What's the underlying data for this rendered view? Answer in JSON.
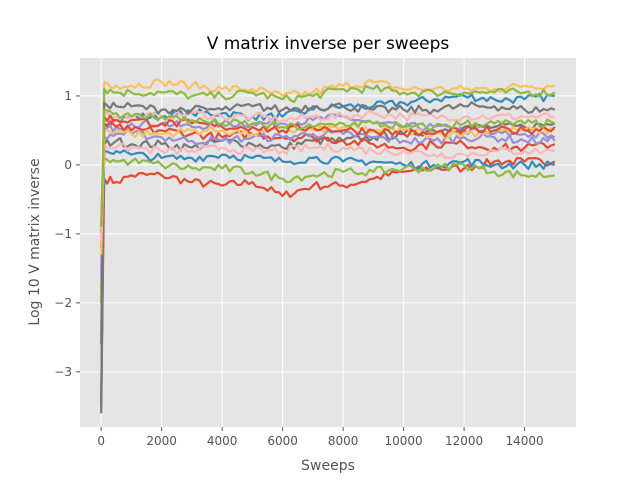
{
  "chart_data": {
    "type": "line",
    "title": "V matrix inverse per sweeps",
    "xlabel": "Sweeps",
    "ylabel": "Log 10 V matrix inverse",
    "xlim": [
      -700,
      15700
    ],
    "ylim": [
      -3.8,
      1.55
    ],
    "xticks": [
      0,
      2000,
      4000,
      6000,
      8000,
      10000,
      12000,
      14000
    ],
    "yticks": [
      -3,
      -2,
      -1,
      0,
      1
    ],
    "grid": true,
    "legend": "none",
    "background": "#e5e5e5",
    "x": [
      0,
      100,
      500,
      1000,
      2000,
      3000,
      4000,
      5000,
      6000,
      7000,
      8000,
      9000,
      10000,
      11000,
      12000,
      13000,
      14000,
      15000
    ],
    "series": [
      {
        "color": "#e24a33",
        "values": [
          -3.4,
          -0.2,
          -0.25,
          -0.15,
          -0.15,
          -0.25,
          -0.3,
          -0.25,
          -0.45,
          -0.3,
          -0.3,
          -0.2,
          -0.1,
          -0.05,
          -0.05,
          0.05,
          0.05,
          0.05
        ]
      },
      {
        "color": "#348abd",
        "values": [
          -3.5,
          0.6,
          0.65,
          0.7,
          0.7,
          0.75,
          0.75,
          0.7,
          0.7,
          0.8,
          0.85,
          0.85,
          0.9,
          0.95,
          1.0,
          0.95,
          0.95,
          1.0
        ]
      },
      {
        "color": "#988ed5",
        "values": [
          -1.8,
          0.5,
          0.55,
          0.6,
          0.6,
          0.55,
          0.6,
          0.6,
          0.6,
          0.65,
          0.7,
          0.6,
          0.55,
          0.55,
          0.5,
          0.45,
          0.45,
          0.4
        ]
      },
      {
        "color": "#777777",
        "values": [
          -3.6,
          0.3,
          0.35,
          0.3,
          0.3,
          0.25,
          0.35,
          0.3,
          0.25,
          0.35,
          0.35,
          0.4,
          0.45,
          0.5,
          0.55,
          0.55,
          0.55,
          0.6
        ]
      },
      {
        "color": "#fbc15e",
        "values": [
          -2.5,
          1.2,
          1.15,
          1.15,
          1.2,
          1.15,
          1.1,
          1.1,
          1.0,
          1.05,
          1.15,
          1.2,
          1.1,
          1.1,
          1.1,
          1.1,
          1.15,
          1.15
        ]
      },
      {
        "color": "#8eba42",
        "values": [
          -2.0,
          1.1,
          1.05,
          1.05,
          1.05,
          1.0,
          1.0,
          1.05,
          0.95,
          1.0,
          1.1,
          1.1,
          1.05,
          1.05,
          1.05,
          1.05,
          1.05,
          1.05
        ]
      },
      {
        "color": "#ffb5b8",
        "values": [
          -1.5,
          0.75,
          0.7,
          0.7,
          0.7,
          0.75,
          0.7,
          0.7,
          0.65,
          0.7,
          0.7,
          0.75,
          0.7,
          0.7,
          0.7,
          0.7,
          0.7,
          0.7
        ]
      },
      {
        "color": "#e24a33",
        "values": [
          -1.2,
          0.6,
          0.55,
          0.5,
          0.5,
          0.45,
          0.4,
          0.45,
          0.4,
          0.4,
          0.35,
          0.3,
          0.25,
          0.3,
          0.3,
          0.25,
          0.25,
          0.3
        ]
      },
      {
        "color": "#348abd",
        "values": [
          -1.0,
          0.2,
          0.2,
          0.15,
          0.1,
          0.1,
          0.15,
          0.1,
          0.05,
          0.1,
          0.05,
          0.05,
          0.0,
          0.0,
          0.05,
          0.0,
          0.0,
          0.0
        ]
      },
      {
        "color": "#988ed5",
        "values": [
          -1.6,
          0.4,
          0.45,
          0.45,
          0.4,
          0.35,
          0.35,
          0.4,
          0.4,
          0.45,
          0.45,
          0.4,
          0.35,
          0.35,
          0.4,
          0.4,
          0.35,
          0.35
        ]
      },
      {
        "color": "#777777",
        "values": [
          -2.6,
          0.9,
          0.85,
          0.85,
          0.8,
          0.8,
          0.8,
          0.85,
          0.8,
          0.85,
          0.85,
          0.8,
          0.8,
          0.8,
          0.85,
          0.85,
          0.8,
          0.8
        ]
      },
      {
        "color": "#fbc15e",
        "values": [
          -1.3,
          0.5,
          0.5,
          0.45,
          0.45,
          0.5,
          0.5,
          0.45,
          0.5,
          0.5,
          0.55,
          0.5,
          0.5,
          0.45,
          0.45,
          0.5,
          0.5,
          0.5
        ]
      },
      {
        "color": "#8eba42",
        "values": [
          -0.95,
          0.1,
          0.05,
          0.05,
          0.0,
          -0.05,
          -0.05,
          -0.1,
          -0.2,
          -0.15,
          -0.1,
          -0.1,
          -0.05,
          -0.05,
          0.0,
          -0.1,
          -0.15,
          -0.15
        ]
      },
      {
        "color": "#ffb5b8",
        "values": [
          -1.1,
          0.3,
          0.25,
          0.25,
          0.2,
          0.2,
          0.25,
          0.2,
          0.2,
          0.25,
          0.25,
          0.2,
          0.2,
          0.15,
          0.15,
          0.2,
          0.2,
          0.2
        ]
      },
      {
        "color": "#e24a33",
        "values": [
          -0.9,
          0.7,
          0.65,
          0.65,
          0.6,
          0.6,
          0.55,
          0.55,
          0.5,
          0.55,
          0.5,
          0.5,
          0.45,
          0.45,
          0.5,
          0.5,
          0.5,
          0.55
        ]
      },
      {
        "color": "#8eba42",
        "values": [
          -0.9,
          0.8,
          0.75,
          0.7,
          0.7,
          0.65,
          0.6,
          0.6,
          0.55,
          0.55,
          0.6,
          0.6,
          0.55,
          0.55,
          0.6,
          0.6,
          0.6,
          0.6
        ]
      }
    ]
  }
}
